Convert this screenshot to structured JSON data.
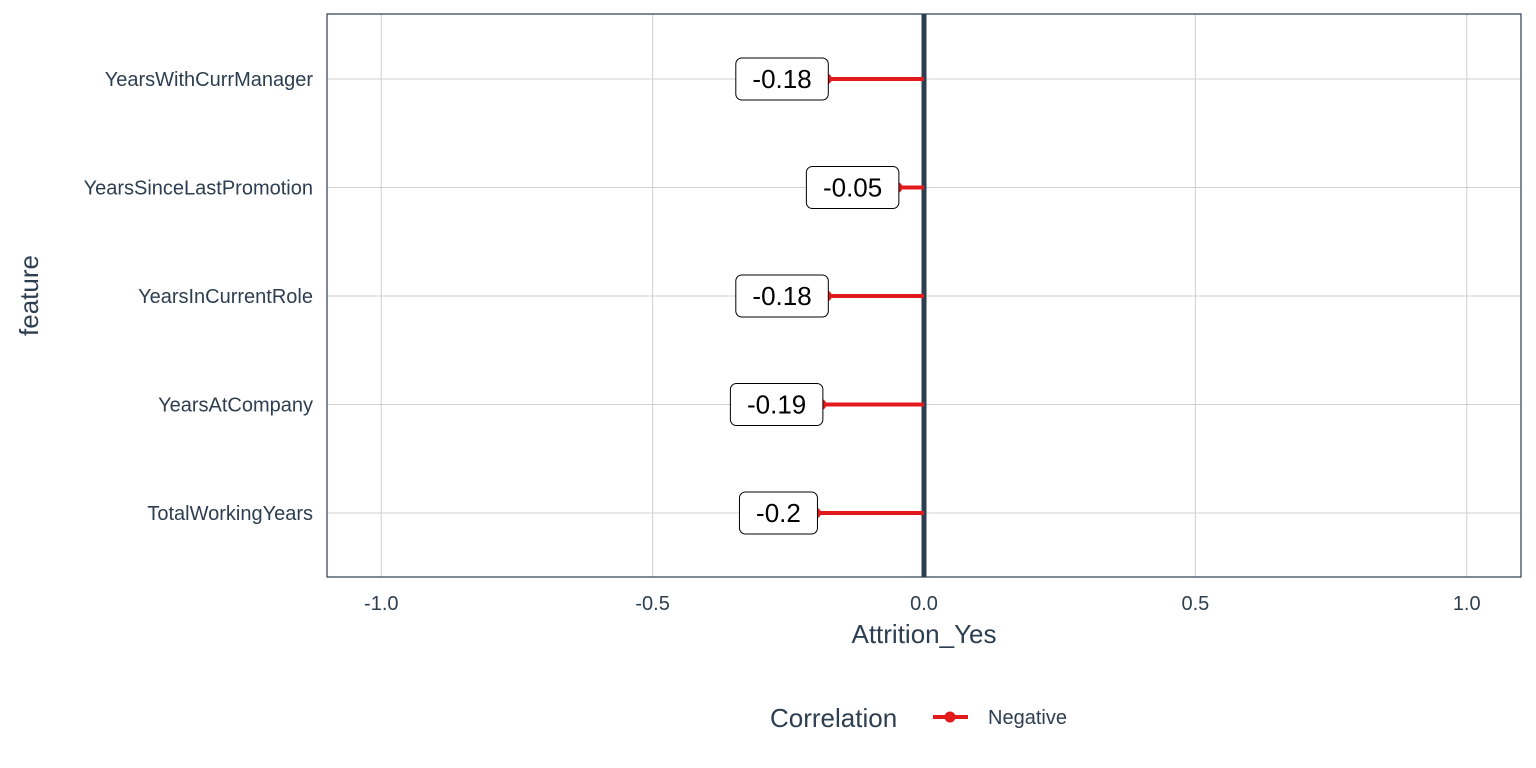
{
  "chart_data": {
    "type": "lollipop",
    "xlabel": "Attrition_Yes",
    "ylabel": "feature",
    "xlim": [
      -1.1,
      1.1
    ],
    "x_ticks": [
      -1.0,
      -0.5,
      0.0,
      0.5,
      1.0
    ],
    "x_tick_labels": [
      "-1.0",
      "-0.5",
      "0.0",
      "0.5",
      "1.0"
    ],
    "grid": true,
    "categories": [
      "YearsWithCurrManager",
      "YearsSinceLastPromotion",
      "YearsInCurrentRole",
      "YearsAtCompany",
      "TotalWorkingYears"
    ],
    "values": [
      -0.18,
      -0.05,
      -0.18,
      -0.19,
      -0.2
    ],
    "value_labels": [
      "-0.18",
      "-0.05",
      "-0.18",
      "-0.19",
      "-0.2"
    ],
    "series": [
      {
        "name": "Negative",
        "color": "#e31a1c"
      }
    ],
    "zero_line_color": "#2c3e50",
    "legend": {
      "title": "Correlation",
      "position": "bottom",
      "items": [
        "Negative"
      ]
    }
  }
}
